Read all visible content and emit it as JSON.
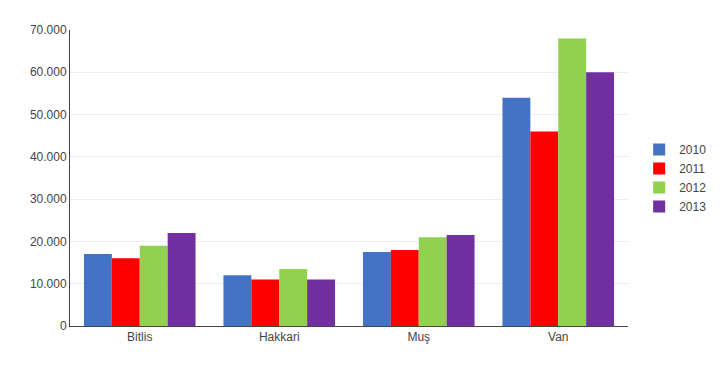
{
  "chart_data": {
    "type": "bar",
    "categories": [
      "Bitlis",
      "Hakkari",
      "Muş",
      "Van"
    ],
    "series": [
      {
        "name": "2010",
        "color": "#4472C4",
        "values": [
          17000,
          12000,
          17500,
          54000
        ]
      },
      {
        "name": "2011",
        "color": "#FF0000",
        "values": [
          16000,
          11000,
          18000,
          46000
        ]
      },
      {
        "name": "2012",
        "color": "#92D050",
        "values": [
          19000,
          13500,
          21000,
          68000
        ]
      },
      {
        "name": "2013",
        "color": "#7030A0",
        "values": [
          22000,
          11000,
          21500,
          60000
        ]
      }
    ],
    "ylim": [
      0,
      70000
    ],
    "yticks": [
      0,
      {
        "value": 10000,
        "label": "10.000"
      },
      {
        "value": 20000,
        "label": "20.000"
      },
      {
        "value": 30000,
        "label": "30.000"
      },
      {
        "value": 40000,
        "label": "40.000"
      },
      {
        "value": 50000,
        "label": "50.000"
      },
      {
        "value": 60000,
        "label": "60.000"
      },
      {
        "value": 70000,
        "label": "70.000"
      }
    ],
    "grid": true,
    "legend": "right"
  }
}
